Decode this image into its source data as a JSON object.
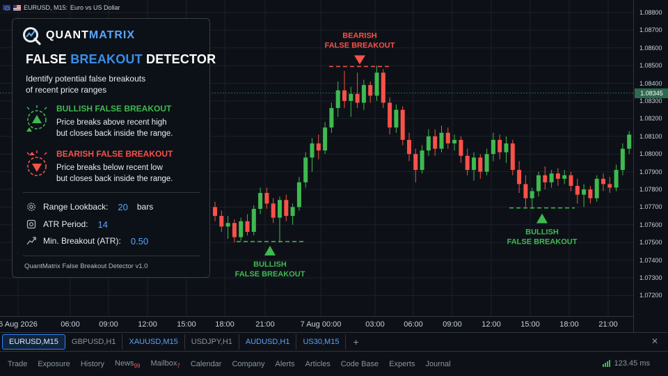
{
  "title_bar": {
    "symbol": "EURUSD, M15:",
    "description": "Euro vs US Dollar"
  },
  "colors": {
    "bull": "#3fb950",
    "bear": "#f85149",
    "accent": "#58a6ff",
    "grid": "#1c2129",
    "background": "#0d1117"
  },
  "price_axis": {
    "ticks": [
      "1.08800",
      "1.08700",
      "1.08600",
      "1.08500",
      "1.08400",
      "1.08300",
      "1.08200",
      "1.08100",
      "1.08000",
      "1.07900",
      "1.07800",
      "1.07700",
      "1.07600",
      "1.07500",
      "1.07400",
      "1.07300",
      "1.07200"
    ],
    "current_price": "1.08345"
  },
  "time_axis": {
    "ticks": [
      "6 Aug 2026",
      "06:00",
      "09:00",
      "12:00",
      "15:00",
      "18:00",
      "21:00",
      "7 Aug 00:00",
      "03:00",
      "06:00",
      "09:00",
      "12:00",
      "15:00",
      "18:00",
      "21:00"
    ]
  },
  "annotations": {
    "bearish": {
      "line1": "BEARISH",
      "line2": "FALSE BREAKOUT",
      "level": 1.08495
    },
    "bullish_left": {
      "line1": "BULLISH",
      "line2": "FALSE BREAKOUT",
      "level": 1.07505
    },
    "bullish_right": {
      "line1": "BULLISH",
      "line2": "FALSE BREAKOUT",
      "level": 1.07695
    }
  },
  "panel": {
    "logo_left": "QUANT",
    "logo_right": "MATRIX",
    "title_a": "FALSE ",
    "title_b": "BREAKOUT",
    "title_c": " DETECTOR",
    "desc_line1": "Identify potential false breakouts",
    "desc_line2": "of recent price ranges",
    "bullish_head": "BULLISH FALSE BREAKOUT",
    "bullish_line1": "Price breaks above recent high",
    "bullish_line2": "but closes back inside the range.",
    "bearish_head": "BEARISH FALSE BREAKOUT",
    "bearish_line1": "Price breaks below recent low",
    "bearish_line2": "but closes back inside the range.",
    "params": [
      {
        "label": "Range Lookback:",
        "value": "20",
        "unit": "bars",
        "icon": "gear-icon"
      },
      {
        "label": "ATR Period:",
        "value": "14",
        "unit": "",
        "icon": "settings-icon"
      },
      {
        "label": "Min. Breakout (ATR):",
        "value": "0.50",
        "unit": "",
        "icon": "breakout-icon"
      }
    ],
    "footer": "QuantMatrix False Breakout Detector v1.0"
  },
  "symbol_tabs": [
    {
      "label": "EURUSD,M15",
      "active": true,
      "blue": false
    },
    {
      "label": "GBPUSD,H1",
      "active": false,
      "blue": false
    },
    {
      "label": "XAUUSD,M15",
      "active": false,
      "blue": true
    },
    {
      "label": "USDJPY,H1",
      "active": false,
      "blue": false
    },
    {
      "label": "AUDUSD,H1",
      "active": false,
      "blue": true
    },
    {
      "label": "US30,M15",
      "active": false,
      "blue": true
    }
  ],
  "bottom_tabs": [
    {
      "label": "Trade",
      "badge": ""
    },
    {
      "label": "Exposure",
      "badge": ""
    },
    {
      "label": "History",
      "badge": ""
    },
    {
      "label": "News",
      "badge": "99"
    },
    {
      "label": "Mailbox",
      "badge": "7"
    },
    {
      "label": "Calendar",
      "badge": ""
    },
    {
      "label": "Company",
      "badge": ""
    },
    {
      "label": "Alerts",
      "badge": ""
    },
    {
      "label": "Articles",
      "badge": ""
    },
    {
      "label": "Code Base",
      "badge": ""
    },
    {
      "label": "Experts",
      "badge": ""
    },
    {
      "label": "Journal",
      "badge": ""
    }
  ],
  "ping": "123.45 ms",
  "chart_data": {
    "type": "candlestick",
    "symbol": "EURUSD",
    "timeframe": "M15",
    "ylim": [
      1.0715,
      1.0885
    ],
    "current_price": 1.08345,
    "x_start": "6 Aug 2026 16:15",
    "x_step": "15 min",
    "candles": [
      {
        "o": 1.077,
        "h": 1.0773,
        "l": 1.0762,
        "c": 1.0765
      },
      {
        "o": 1.0765,
        "h": 1.0768,
        "l": 1.0756,
        "c": 1.0759
      },
      {
        "o": 1.0759,
        "h": 1.0765,
        "l": 1.0752,
        "c": 1.0761
      },
      {
        "o": 1.0761,
        "h": 1.0763,
        "l": 1.075,
        "c": 1.0753
      },
      {
        "o": 1.0753,
        "h": 1.0764,
        "l": 1.0751,
        "c": 1.0762
      },
      {
        "o": 1.0762,
        "h": 1.0766,
        "l": 1.0754,
        "c": 1.0756
      },
      {
        "o": 1.0756,
        "h": 1.0771,
        "l": 1.0754,
        "c": 1.0769
      },
      {
        "o": 1.0769,
        "h": 1.0781,
        "l": 1.0766,
        "c": 1.0778
      },
      {
        "o": 1.0778,
        "h": 1.0781,
        "l": 1.0769,
        "c": 1.0772
      },
      {
        "o": 1.0772,
        "h": 1.0775,
        "l": 1.0761,
        "c": 1.0764
      },
      {
        "o": 1.0764,
        "h": 1.0776,
        "l": 1.075,
        "c": 1.0774
      },
      {
        "o": 1.0774,
        "h": 1.0777,
        "l": 1.0762,
        "c": 1.0765
      },
      {
        "o": 1.0765,
        "h": 1.0772,
        "l": 1.076,
        "c": 1.077
      },
      {
        "o": 1.077,
        "h": 1.0787,
        "l": 1.0768,
        "c": 1.0784
      },
      {
        "o": 1.0784,
        "h": 1.0801,
        "l": 1.0781,
        "c": 1.0798
      },
      {
        "o": 1.0798,
        "h": 1.0809,
        "l": 1.079,
        "c": 1.0806
      },
      {
        "o": 1.0806,
        "h": 1.0811,
        "l": 1.0797,
        "c": 1.0802
      },
      {
        "o": 1.0802,
        "h": 1.0818,
        "l": 1.08,
        "c": 1.0815
      },
      {
        "o": 1.0815,
        "h": 1.0829,
        "l": 1.0812,
        "c": 1.0826
      },
      {
        "o": 1.0826,
        "h": 1.0841,
        "l": 1.0821,
        "c": 1.0836
      },
      {
        "o": 1.0836,
        "h": 1.0847,
        "l": 1.0826,
        "c": 1.083
      },
      {
        "o": 1.083,
        "h": 1.0838,
        "l": 1.0821,
        "c": 1.0834
      },
      {
        "o": 1.0834,
        "h": 1.0846,
        "l": 1.0826,
        "c": 1.0829
      },
      {
        "o": 1.0829,
        "h": 1.0842,
        "l": 1.0825,
        "c": 1.0839
      },
      {
        "o": 1.0839,
        "h": 1.0841,
        "l": 1.0829,
        "c": 1.0833
      },
      {
        "o": 1.0833,
        "h": 1.085,
        "l": 1.083,
        "c": 1.0846
      },
      {
        "o": 1.0846,
        "h": 1.0848,
        "l": 1.0826,
        "c": 1.0829
      },
      {
        "o": 1.0829,
        "h": 1.0832,
        "l": 1.0811,
        "c": 1.0815
      },
      {
        "o": 1.0815,
        "h": 1.0828,
        "l": 1.0812,
        "c": 1.0825
      },
      {
        "o": 1.0825,
        "h": 1.0827,
        "l": 1.0805,
        "c": 1.0808
      },
      {
        "o": 1.0808,
        "h": 1.0812,
        "l": 1.0796,
        "c": 1.08
      },
      {
        "o": 1.08,
        "h": 1.0803,
        "l": 1.0784,
        "c": 1.0791
      },
      {
        "o": 1.0791,
        "h": 1.0805,
        "l": 1.0789,
        "c": 1.0802
      },
      {
        "o": 1.0802,
        "h": 1.0814,
        "l": 1.0799,
        "c": 1.081
      },
      {
        "o": 1.081,
        "h": 1.0814,
        "l": 1.0799,
        "c": 1.0803
      },
      {
        "o": 1.0803,
        "h": 1.0816,
        "l": 1.0801,
        "c": 1.0812
      },
      {
        "o": 1.0812,
        "h": 1.0815,
        "l": 1.0803,
        "c": 1.0806
      },
      {
        "o": 1.0806,
        "h": 1.0811,
        "l": 1.0802,
        "c": 1.0808
      },
      {
        "o": 1.0808,
        "h": 1.081,
        "l": 1.0795,
        "c": 1.0799
      },
      {
        "o": 1.0799,
        "h": 1.0803,
        "l": 1.0788,
        "c": 1.0791
      },
      {
        "o": 1.0791,
        "h": 1.0801,
        "l": 1.0785,
        "c": 1.0798
      },
      {
        "o": 1.0798,
        "h": 1.08,
        "l": 1.0786,
        "c": 1.079
      },
      {
        "o": 1.079,
        "h": 1.0803,
        "l": 1.0788,
        "c": 1.08
      },
      {
        "o": 1.08,
        "h": 1.0812,
        "l": 1.0796,
        "c": 1.0808
      },
      {
        "o": 1.0808,
        "h": 1.0811,
        "l": 1.0797,
        "c": 1.0801
      },
      {
        "o": 1.0801,
        "h": 1.081,
        "l": 1.0795,
        "c": 1.0806
      },
      {
        "o": 1.0806,
        "h": 1.0808,
        "l": 1.0788,
        "c": 1.0791
      },
      {
        "o": 1.0791,
        "h": 1.0796,
        "l": 1.0778,
        "c": 1.0783
      },
      {
        "o": 1.0783,
        "h": 1.0788,
        "l": 1.077,
        "c": 1.0775
      },
      {
        "o": 1.0775,
        "h": 1.0781,
        "l": 1.0769,
        "c": 1.0779
      },
      {
        "o": 1.0779,
        "h": 1.079,
        "l": 1.0776,
        "c": 1.0788
      },
      {
        "o": 1.0788,
        "h": 1.0793,
        "l": 1.078,
        "c": 1.0784
      },
      {
        "o": 1.0784,
        "h": 1.0791,
        "l": 1.0781,
        "c": 1.0789
      },
      {
        "o": 1.0789,
        "h": 1.0792,
        "l": 1.0782,
        "c": 1.0786
      },
      {
        "o": 1.0786,
        "h": 1.0791,
        "l": 1.0783,
        "c": 1.0788
      },
      {
        "o": 1.0788,
        "h": 1.079,
        "l": 1.0779,
        "c": 1.0782
      },
      {
        "o": 1.0782,
        "h": 1.0786,
        "l": 1.0772,
        "c": 1.0777
      },
      {
        "o": 1.0777,
        "h": 1.0783,
        "l": 1.077,
        "c": 1.078
      },
      {
        "o": 1.078,
        "h": 1.0782,
        "l": 1.0772,
        "c": 1.0775
      },
      {
        "o": 1.0775,
        "h": 1.0788,
        "l": 1.0773,
        "c": 1.0786
      },
      {
        "o": 1.0786,
        "h": 1.0789,
        "l": 1.0779,
        "c": 1.0783
      },
      {
        "o": 1.0783,
        "h": 1.0787,
        "l": 1.0778,
        "c": 1.0781
      },
      {
        "o": 1.0781,
        "h": 1.0794,
        "l": 1.0779,
        "c": 1.0791
      },
      {
        "o": 1.0791,
        "h": 1.0806,
        "l": 1.0788,
        "c": 1.0803
      },
      {
        "o": 1.0803,
        "h": 1.0813,
        "l": 1.08,
        "c": 1.0811
      },
      {
        "o": 1.0811,
        "h": 1.0814,
        "l": 1.0804,
        "c": 1.0808
      },
      {
        "o": 1.0808,
        "h": 1.082,
        "l": 1.0806,
        "c": 1.0817
      },
      {
        "o": 1.0817,
        "h": 1.0834,
        "l": 1.0815,
        "c": 1.0831
      },
      {
        "o": 1.0831,
        "h": 1.0842,
        "l": 1.0827,
        "c": 1.0839
      },
      {
        "o": 1.0839,
        "h": 1.0846,
        "l": 1.083,
        "c": 1.0834
      }
    ]
  }
}
